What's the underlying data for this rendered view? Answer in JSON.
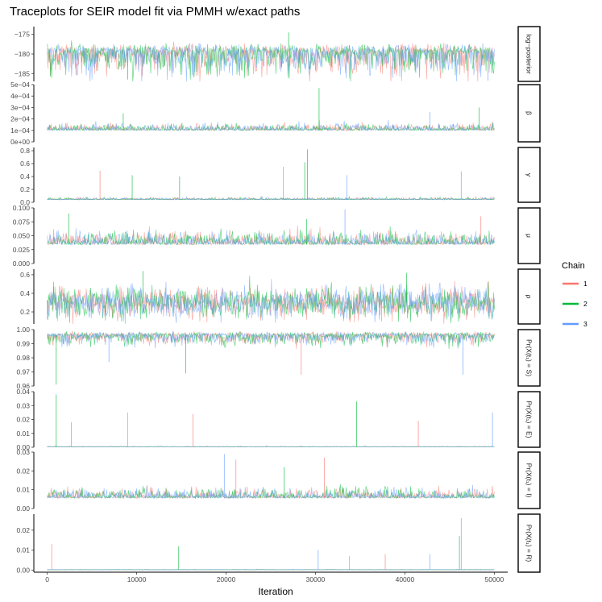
{
  "chart_data": {
    "type": "line",
    "title": "Traceplots for SEIR model fit via PMMH w/exact paths",
    "xlabel": "Iteration",
    "xlim": [
      -1500,
      51500
    ],
    "x_ticks": [
      0,
      10000,
      20000,
      30000,
      40000,
      50000
    ],
    "x_tick_labels": [
      "0",
      "10000",
      "20000",
      "30000",
      "40000",
      "50000"
    ],
    "legend": {
      "title": "Chain",
      "position": "right",
      "entries": [
        {
          "label": "1",
          "color": "#F8766D"
        },
        {
          "label": "2",
          "color": "#00BA38"
        },
        {
          "label": "3",
          "color": "#619CFF"
        }
      ]
    },
    "grid": false,
    "panels": [
      {
        "strip": "log−posterior",
        "ylim": [
          -187,
          -173
        ],
        "y_ticks": [
          -185,
          -180,
          -175
        ],
        "y_tick_labels": [
          "−185",
          "−180",
          "−175"
        ],
        "center": -179.5,
        "spread": 2.6,
        "skew": "down",
        "spikes": [
          {
            "x": 9000,
            "y": -186.5,
            "series": 1
          },
          {
            "x": 49300,
            "y": -186.8,
            "series": 2
          },
          {
            "x": 27000,
            "y": -174.5,
            "series": 1
          }
        ]
      },
      {
        "strip": "β",
        "ylim": [
          0,
          0.0005
        ],
        "y_ticks": [
          0,
          0.0001,
          0.0002,
          0.0003,
          0.0004,
          0.0005
        ],
        "y_tick_labels": [
          "0e+00",
          "1e−04",
          "2e−04",
          "3e−04",
          "4e−04",
          "5e−04"
        ],
        "center": 0.0001,
        "spread": 2.8e-05,
        "skew": "up",
        "spikes": [
          {
            "x": 30400,
            "y": 0.00047,
            "series": 1
          },
          {
            "x": 8500,
            "y": 0.00025,
            "series": 1
          },
          {
            "x": 48300,
            "y": 0.0003,
            "series": 1
          },
          {
            "x": 42800,
            "y": 0.00026,
            "series": 2
          }
        ]
      },
      {
        "strip": "γ",
        "ylim": [
          0,
          0.85
        ],
        "y_ticks": [
          0,
          0.2,
          0.4,
          0.6,
          0.8
        ],
        "y_tick_labels": [
          "0.0",
          "0.2",
          "0.4",
          "0.6",
          "0.8"
        ],
        "center": 0.04,
        "spread": 0.015,
        "skew": "up",
        "spikes": [
          {
            "x": 29100,
            "y": 0.82,
            "series": 1
          },
          {
            "x": 28800,
            "y": 0.62,
            "series": 1
          },
          {
            "x": 26400,
            "y": 0.55,
            "series": 0
          },
          {
            "x": 5900,
            "y": 0.49,
            "series": 0
          },
          {
            "x": 46300,
            "y": 0.48,
            "series": 2
          },
          {
            "x": 9500,
            "y": 0.42,
            "series": 1
          },
          {
            "x": 33500,
            "y": 0.42,
            "series": 2
          },
          {
            "x": 14800,
            "y": 0.4,
            "series": 1
          }
        ]
      },
      {
        "strip": "μ",
        "ylim": [
          0,
          0.1
        ],
        "y_ticks": [
          0,
          0.025,
          0.05,
          0.075,
          0.1
        ],
        "y_tick_labels": [
          "0.000",
          "0.025",
          "0.050",
          "0.075",
          "0.100"
        ],
        "center": 0.034,
        "spread": 0.011,
        "skew": "up",
        "spikes": [
          {
            "x": 33300,
            "y": 0.097,
            "series": 2
          },
          {
            "x": 2400,
            "y": 0.09,
            "series": 1
          },
          {
            "x": 48500,
            "y": 0.085,
            "series": 0
          },
          {
            "x": 29000,
            "y": 0.08,
            "series": 1
          }
        ]
      },
      {
        "strip": "ρ",
        "ylim": [
          0.07,
          0.66
        ],
        "y_ticks": [
          0.2,
          0.4,
          0.6
        ],
        "y_tick_labels": [
          "0.2",
          "0.4",
          "0.6"
        ],
        "center": 0.3,
        "spread": 0.085,
        "skew": "none",
        "spikes": [
          {
            "x": 10700,
            "y": 0.64,
            "series": 1
          },
          {
            "x": 40200,
            "y": 0.62,
            "series": 1
          },
          {
            "x": 37400,
            "y": 0.1,
            "series": 0
          }
        ]
      },
      {
        "strip": "Pr(X(t₁) = S)",
        "ylim": [
          0.96,
          1.0
        ],
        "y_ticks": [
          0.96,
          0.97,
          0.98,
          0.99,
          1.0
        ],
        "y_tick_labels": [
          "0.96",
          "0.97",
          "0.98",
          "0.99",
          "1.00"
        ],
        "center": 0.996,
        "spread": 0.0028,
        "skew": "down",
        "spikes": [
          {
            "x": 1000,
            "y": 0.961,
            "series": 1
          },
          {
            "x": 15500,
            "y": 0.969,
            "series": 1
          },
          {
            "x": 28400,
            "y": 0.968,
            "series": 0
          },
          {
            "x": 46500,
            "y": 0.968,
            "series": 2
          },
          {
            "x": 6900,
            "y": 0.977,
            "series": 2
          }
        ]
      },
      {
        "strip": "Pr(X(t₁) = E)",
        "ylim": [
          0,
          0.04
        ],
        "y_ticks": [
          0,
          0.01,
          0.02,
          0.03,
          0.04
        ],
        "y_tick_labels": [
          "0.00",
          "0.01",
          "0.02",
          "0.03",
          "0.04"
        ],
        "center": 0.0003,
        "spread": 0.0002,
        "skew": "up",
        "spikes": [
          {
            "x": 1000,
            "y": 0.038,
            "series": 1
          },
          {
            "x": 34600,
            "y": 0.033,
            "series": 1
          },
          {
            "x": 9000,
            "y": 0.025,
            "series": 0
          },
          {
            "x": 49800,
            "y": 0.025,
            "series": 2
          },
          {
            "x": 16300,
            "y": 0.024,
            "series": 0
          },
          {
            "x": 2700,
            "y": 0.018,
            "series": 2
          },
          {
            "x": 41500,
            "y": 0.019,
            "series": 0
          }
        ]
      },
      {
        "strip": "Pr(X(t₁) = I)",
        "ylim": [
          0,
          0.03
        ],
        "y_ticks": [
          0,
          0.01,
          0.02,
          0.03
        ],
        "y_tick_labels": [
          "0.00",
          "0.01",
          "0.02",
          "0.03"
        ],
        "center": 0.0055,
        "spread": 0.0025,
        "skew": "up",
        "spikes": [
          {
            "x": 19800,
            "y": 0.029,
            "series": 2
          },
          {
            "x": 31000,
            "y": 0.027,
            "series": 0
          },
          {
            "x": 21100,
            "y": 0.026,
            "series": 0
          },
          {
            "x": 26500,
            "y": 0.022,
            "series": 1
          }
        ]
      },
      {
        "strip": "Pr(X(t₁) = R)",
        "ylim": [
          -0.001,
          0.028
        ],
        "y_ticks": [
          0,
          0.01,
          0.02
        ],
        "y_tick_labels": [
          "0.00",
          "0.01",
          "0.02"
        ],
        "center": 0.0002,
        "spread": 0.0001,
        "skew": "up",
        "spikes": [
          {
            "x": 46300,
            "y": 0.026,
            "series": 2
          },
          {
            "x": 46100,
            "y": 0.017,
            "series": 1
          },
          {
            "x": 500,
            "y": 0.013,
            "series": 0
          },
          {
            "x": 14700,
            "y": 0.012,
            "series": 1
          },
          {
            "x": 30300,
            "y": 0.01,
            "series": 2
          },
          {
            "x": 33800,
            "y": 0.007,
            "series": 0
          },
          {
            "x": 37800,
            "y": 0.008,
            "series": 0
          },
          {
            "x": 42800,
            "y": 0.008,
            "series": 2
          }
        ]
      }
    ]
  }
}
